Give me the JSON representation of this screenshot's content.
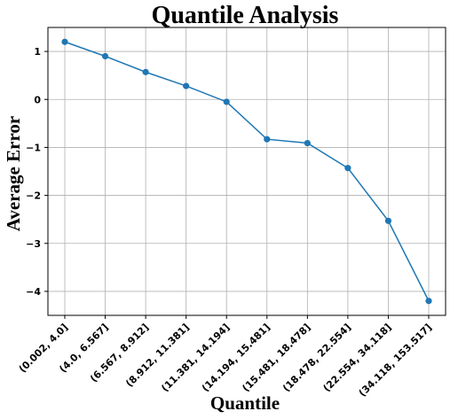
{
  "chart_data": {
    "type": "line",
    "title": "Quantile Analysis",
    "xlabel": "Quantile",
    "ylabel": "Average Error",
    "categories": [
      "(0.002, 4.0]",
      "(4.0, 6.567]",
      "(6.567, 8.912]",
      "(8.912, 11.381]",
      "(11.381, 14.194]",
      "(14.194, 15.481]",
      "(15.481, 18.478]",
      "(18.478, 22.554]",
      "(22.554, 34.118]",
      "(34.118, 153.517]"
    ],
    "values": [
      1.2,
      0.9,
      0.57,
      0.28,
      -0.05,
      -0.83,
      -0.91,
      -1.43,
      -2.53,
      -4.2
    ],
    "ylim": [
      -4.5,
      1.5
    ],
    "yticks": [
      1,
      0,
      -1,
      -2,
      -3,
      -4
    ],
    "ytick_labels": [
      "1",
      "0",
      "−1",
      "−2",
      "−3",
      "−4"
    ],
    "grid": true,
    "color": "#1f77b4"
  }
}
